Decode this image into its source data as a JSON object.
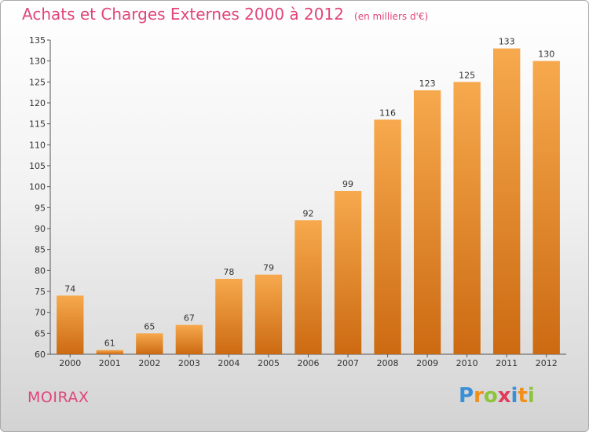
{
  "chart_data": {
    "type": "bar",
    "title": "Achats et Charges Externes 2000 à 2012",
    "subtitle": "(en milliers d'€)",
    "categories": [
      "2000",
      "2001",
      "2002",
      "2003",
      "2004",
      "2005",
      "2006",
      "2007",
      "2008",
      "2009",
      "2010",
      "2011",
      "2012"
    ],
    "values": [
      74,
      61,
      65,
      67,
      78,
      79,
      92,
      99,
      116,
      123,
      125,
      133,
      130
    ],
    "ylim": [
      60,
      135
    ],
    "yticks": [
      60,
      65,
      70,
      75,
      80,
      85,
      90,
      95,
      100,
      105,
      110,
      115,
      120,
      125,
      130,
      135
    ],
    "xlabel": "",
    "ylabel": "",
    "grid": false,
    "bar_color_top": "#f7a94d",
    "bar_color_bottom": "#cc6a12",
    "label_color": "#333333",
    "title_color": "#e0457b"
  },
  "commune": "MOIRAX",
  "logo": {
    "letters": [
      "P",
      "r",
      "o",
      "x",
      "i",
      "t",
      "i"
    ],
    "colors": [
      "#3a8fd6",
      "#f0901a",
      "#8cc43c",
      "#e03c5a",
      "#3a8fd6",
      "#f0901a",
      "#8cc43c"
    ]
  }
}
